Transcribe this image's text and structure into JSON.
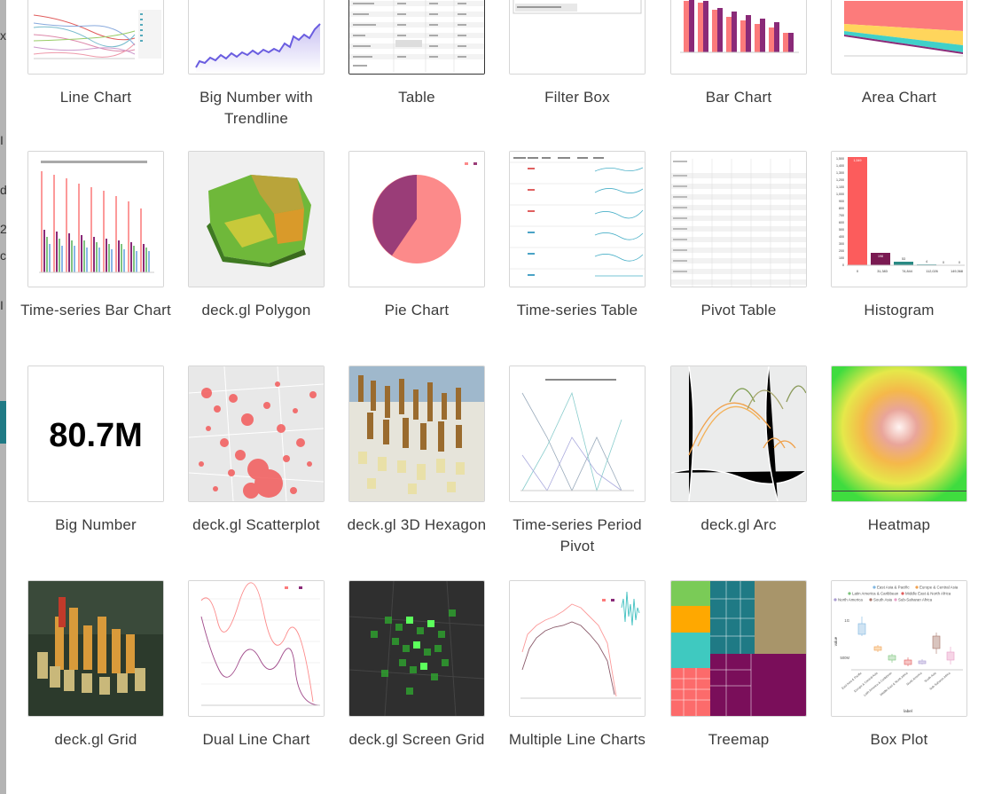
{
  "left_pane": {
    "fragments": [
      "x",
      "I",
      "d",
      "2",
      "c",
      "I"
    ]
  },
  "cards": [
    {
      "label": "Line Chart",
      "selected": false
    },
    {
      "label": "Big Number with Trendline",
      "selected": false
    },
    {
      "label": "Table",
      "selected": true
    },
    {
      "label": "Filter Box",
      "selected": false
    },
    {
      "label": "Bar Chart",
      "selected": false
    },
    {
      "label": "Area Chart",
      "selected": false
    },
    {
      "label": "Time-series Bar Chart",
      "selected": false
    },
    {
      "label": "deck.gl Polygon",
      "selected": false
    },
    {
      "label": "Pie Chart",
      "selected": false
    },
    {
      "label": "Time-series Table",
      "selected": false
    },
    {
      "label": "Pivot Table",
      "selected": false
    },
    {
      "label": "Histogram",
      "selected": false
    },
    {
      "label": "Big Number",
      "selected": false
    },
    {
      "label": "deck.gl Scatterplot",
      "selected": false
    },
    {
      "label": "deck.gl 3D Hexagon",
      "selected": false
    },
    {
      "label": "Time-series Period Pivot",
      "selected": false
    },
    {
      "label": "deck.gl Arc",
      "selected": false
    },
    {
      "label": "Heatmap",
      "selected": false
    },
    {
      "label": "deck.gl Grid",
      "selected": false
    },
    {
      "label": "Dual Line Chart",
      "selected": false
    },
    {
      "label": "deck.gl Screen Grid",
      "selected": false
    },
    {
      "label": "Multiple Line Charts",
      "selected": false
    },
    {
      "label": "Treemap",
      "selected": false
    },
    {
      "label": "Box Plot",
      "selected": false
    }
  ],
  "thumbnail_text": {
    "big_number_value": "80.7M",
    "histogram_bar_labels": [
      "1,549",
      "198",
      "53",
      "4",
      "0",
      "0"
    ],
    "histogram_x_labels": [
      "0",
      "31,383",
      "74,844",
      "112,026",
      "149,368"
    ],
    "histogram_y_labels": [
      "1,500",
      "1,400",
      "1,300",
      "1,200",
      "1,100",
      "1,000",
      "900",
      "800",
      "700",
      "600",
      "500",
      "400",
      "300",
      "200",
      "100",
      "0"
    ],
    "box_plot_legend": [
      "East Asia & Pacific",
      "Europe & Central Asia",
      "Latin America & Caribbean",
      "Middle East & North Africa",
      "North America",
      "South Asia",
      "Sub-Saharan Africa"
    ],
    "box_plot_x_labels": [
      "East Asia & Pacific",
      "Europe & Central Asia",
      "Latin America & Caribbean",
      "Middle East & North Africa",
      "North America",
      "South Asia",
      "Sub-Saharan Africa"
    ],
    "box_plot_xlabel": "label",
    "box_plot_ylabel": "value",
    "box_plot_y_ticks": [
      "1G",
      "500M"
    ],
    "pie_legend": [
      "",
      ""
    ],
    "colors": {
      "selected_border": "#333333",
      "card_border": "#d6d6d6",
      "label_text": "#3b3b3b",
      "accent_red": "#fc5c5c",
      "accent_purple": "#8a2a78",
      "teal": "#1f7a85"
    }
  }
}
